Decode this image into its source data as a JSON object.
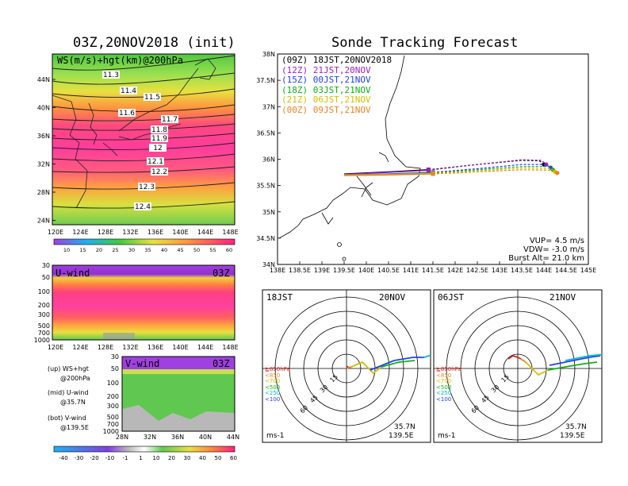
{
  "left": {
    "title": "03Z,20NOV2018 (init)",
    "map": {
      "label": "WS(m/s)+hgt(km)@200hPa",
      "lat_ticks": [
        "44N",
        "40N",
        "36N",
        "32N",
        "28N",
        "24N"
      ],
      "lon_ticks": [
        "120E",
        "124E",
        "128E",
        "132E",
        "136E",
        "140E",
        "144E",
        "148E"
      ],
      "contour_labels": [
        "11.3",
        "11.4",
        "11.5",
        "11.6",
        "11.7",
        "11.8",
        "11.9",
        "12",
        "12.1",
        "12.2",
        "12.3",
        "12.4"
      ]
    },
    "ws_colorbar": [
      "10",
      "15",
      "20",
      "25",
      "30",
      "35",
      "40",
      "45",
      "50",
      "55",
      "60"
    ],
    "uwind": {
      "label": "U-wind",
      "time": "03Z",
      "p_ticks": [
        "30",
        "50",
        "100",
        "200",
        "300",
        "500",
        "700",
        "1000"
      ],
      "lon_ticks": [
        "120E",
        "124E",
        "128E",
        "132E",
        "136E",
        "140E",
        "144E",
        "148E"
      ]
    },
    "vwind": {
      "label": "V-wind",
      "time": "03Z",
      "p_ticks": [
        "30",
        "50",
        "100",
        "200",
        "300",
        "500",
        "700",
        "1000"
      ],
      "lat_ticks": [
        "28N",
        "32N",
        "36N",
        "40N",
        "44N"
      ]
    },
    "notes": [
      "(up) WS+hgt",
      "@200hPa",
      "(mid) U-wind",
      "@35.7N",
      "(bot) V-wind",
      "@139.5E"
    ],
    "wind_colorbar": [
      "-40",
      "-30",
      "-20",
      "-10",
      "-1",
      "1",
      "10",
      "20",
      "30",
      "40",
      "50",
      "60"
    ]
  },
  "right": {
    "title": "Sonde Tracking Forecast",
    "params": [
      "VUP=  4.5 m/s",
      "VDW= -3.0 m/s",
      "Burst Alt= 21.0 km"
    ],
    "colors": {
      "09Z": "#000000",
      "12Z": "#a020c0",
      "15Z": "#2040ff",
      "18Z": "#10b010",
      "21Z": "#d0c000",
      "00Z": "#f08020"
    },
    "hodo_left": {
      "time": "18JST",
      "date": "20NOV",
      "lat": "35.7N",
      "lon": "139.5E",
      "unit": "ms-1",
      "rings": [
        "15",
        "30",
        "45",
        "60"
      ]
    },
    "hodo_right": {
      "time": "06JST",
      "date": "21NOV",
      "lat": "35.7N",
      "lon": "139.5E",
      "unit": "ms-1",
      "rings": [
        "15",
        "30",
        "45",
        "60"
      ]
    },
    "hodo_levels": [
      {
        "label": "≧850hPa",
        "color": "#e02020"
      },
      {
        "label": "<850",
        "color": "#f08020"
      },
      {
        "label": "<700",
        "color": "#d0c000"
      },
      {
        "label": "<500",
        "color": "#10b010"
      },
      {
        "label": "<250",
        "color": "#00c0c0"
      },
      {
        "label": "<100",
        "color": "#2040ff"
      }
    ]
  },
  "chart_data": [
    {
      "type": "line",
      "title": "Sonde Tracking Forecast",
      "x_ticks": [
        "138E",
        "138.5E",
        "139E",
        "139.5E",
        "140E",
        "140.5E",
        "141E",
        "141.5E",
        "142E",
        "142.5E",
        "143E",
        "143.5E",
        "144E",
        "144.5E",
        "145E"
      ],
      "y_ticks": [
        "34N",
        "34.5N",
        "35N",
        "35.5N",
        "36N",
        "36.5N",
        "37N",
        "37.5N",
        "38N"
      ],
      "xlim": [
        138,
        145
      ],
      "ylim": [
        34,
        38
      ],
      "series": [
        {
          "name": "(09Z)  18JST,20NOV2018",
          "color": "#000000",
          "x": [
            139.5,
            140.5,
            141.4,
            142.5,
            143.5,
            143.9,
            144.0
          ],
          "y": [
            35.72,
            35.76,
            35.8,
            35.9,
            35.98,
            35.97,
            35.9
          ]
        },
        {
          "name": "(12Z)  21JST,20NOV",
          "color": "#a020c0",
          "x": [
            139.5,
            140.5,
            141.4,
            142.5,
            143.5,
            143.95,
            144.05
          ],
          "y": [
            35.71,
            35.75,
            35.79,
            35.9,
            35.99,
            35.98,
            35.9
          ]
        },
        {
          "name": "(15Z)  00JST,21NOV",
          "color": "#2040ff",
          "x": [
            139.5,
            140.5,
            141.5,
            142.5,
            143.5,
            144.05,
            144.15
          ],
          "y": [
            35.7,
            35.72,
            35.75,
            35.82,
            35.9,
            35.9,
            35.84
          ]
        },
        {
          "name": "(18Z)  03JST,21NOV",
          "color": "#10b010",
          "x": [
            139.5,
            140.5,
            141.5,
            142.5,
            143.5,
            144.1,
            144.2
          ],
          "y": [
            35.7,
            35.71,
            35.74,
            35.8,
            35.86,
            35.86,
            35.8
          ]
        },
        {
          "name": "(21Z)  06JST,21NOV",
          "color": "#d0c000",
          "x": [
            139.5,
            140.5,
            141.5,
            142.5,
            143.5,
            144.15,
            144.25
          ],
          "y": [
            35.7,
            35.71,
            35.73,
            35.78,
            35.83,
            35.82,
            35.76
          ]
        },
        {
          "name": "(00Z)  09JST,21NOV",
          "color": "#f08020",
          "x": [
            139.5,
            140.5,
            141.5,
            142.5,
            143.5,
            144.2,
            144.3
          ],
          "y": [
            35.69,
            35.7,
            35.72,
            35.76,
            35.8,
            35.79,
            35.74
          ]
        }
      ]
    }
  ]
}
